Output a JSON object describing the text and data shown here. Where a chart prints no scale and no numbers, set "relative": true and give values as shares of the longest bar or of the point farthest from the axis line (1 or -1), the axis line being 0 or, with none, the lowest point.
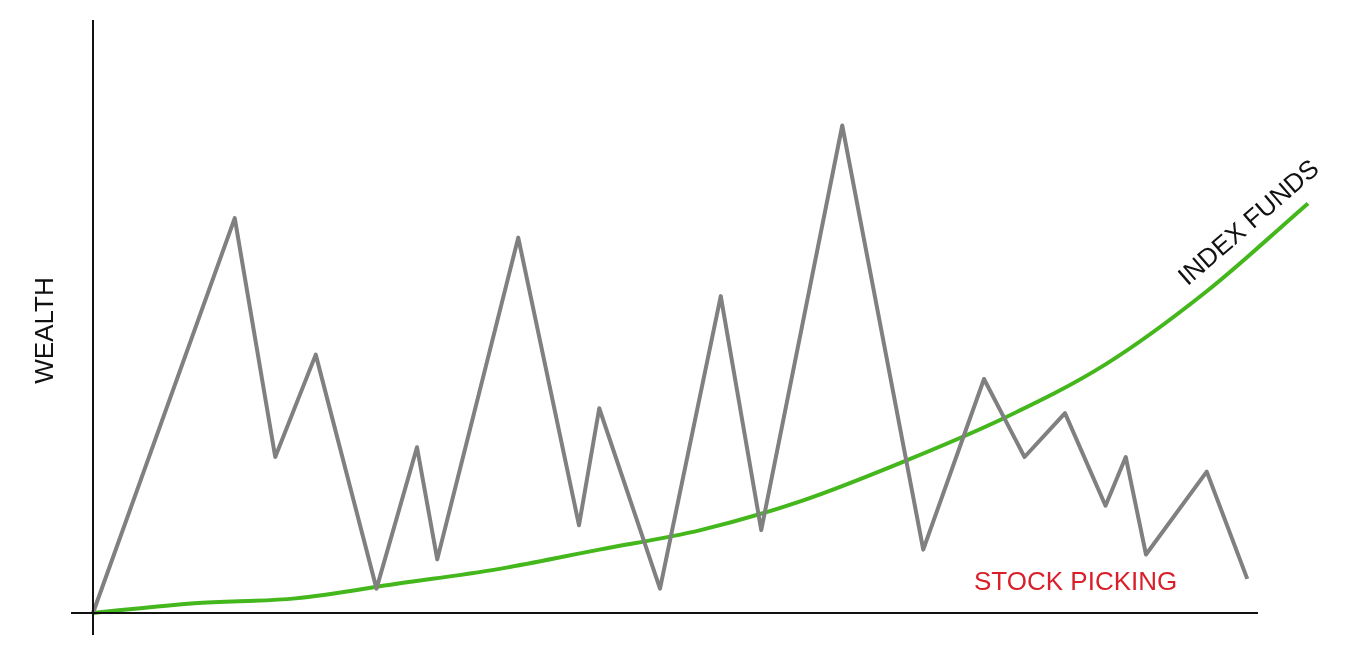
{
  "chart_data": {
    "type": "line",
    "ylabel": "WEALTH",
    "relative": true,
    "legend": false,
    "marker": "none",
    "categories": [
      null,
      null,
      null,
      null,
      null,
      null,
      null,
      null,
      null,
      null,
      null,
      null,
      null,
      null,
      null,
      null,
      null,
      null,
      null,
      null,
      null,
      null,
      null,
      null,
      null,
      null,
      null,
      null,
      null,
      null,
      null,
      null,
      null,
      null,
      null,
      null,
      null,
      null,
      null,
      null,
      null,
      null,
      null,
      null,
      null,
      null,
      null,
      null,
      null,
      null,
      null,
      null,
      null,
      null,
      null,
      null,
      null,
      null,
      null,
      null,
      null
    ],
    "series": [
      {
        "name": "STOCK PICKING",
        "color": "#808080",
        "values": [
          0,
          null,
          null,
          null,
          null,
          null,
          null,
          0.81,
          null,
          0.32,
          null,
          0.53,
          null,
          null,
          0.05,
          null,
          0.34,
          0.11,
          null,
          null,
          null,
          0.77,
          null,
          null,
          0.18,
          0.42,
          null,
          null,
          0.05,
          null,
          null,
          0.65,
          null,
          0.17,
          null,
          null,
          null,
          1,
          null,
          null,
          null,
          0.13,
          null,
          null,
          0.48,
          null,
          0.32,
          null,
          0.41,
          null,
          0.22,
          0.32,
          0.12,
          null,
          null,
          0.29,
          null,
          0.07,
          null,
          null,
          null
        ]
      },
      {
        "name": "INDEX FUNDS",
        "color": "#44b71c",
        "values": [
          0,
          null,
          null,
          null,
          null,
          0.02,
          null,
          null,
          null,
          null,
          0.03,
          null,
          null,
          null,
          null,
          0.06,
          null,
          null,
          null,
          null,
          0.09,
          null,
          null,
          null,
          null,
          0.13,
          null,
          null,
          null,
          null,
          0.17,
          null,
          null,
          null,
          null,
          0.23,
          null,
          null,
          null,
          null,
          0.31,
          null,
          null,
          null,
          null,
          0.4,
          null,
          null,
          null,
          null,
          0.51,
          null,
          null,
          null,
          null,
          0.66,
          null,
          null,
          null,
          null,
          0.84
        ]
      }
    ]
  }
}
